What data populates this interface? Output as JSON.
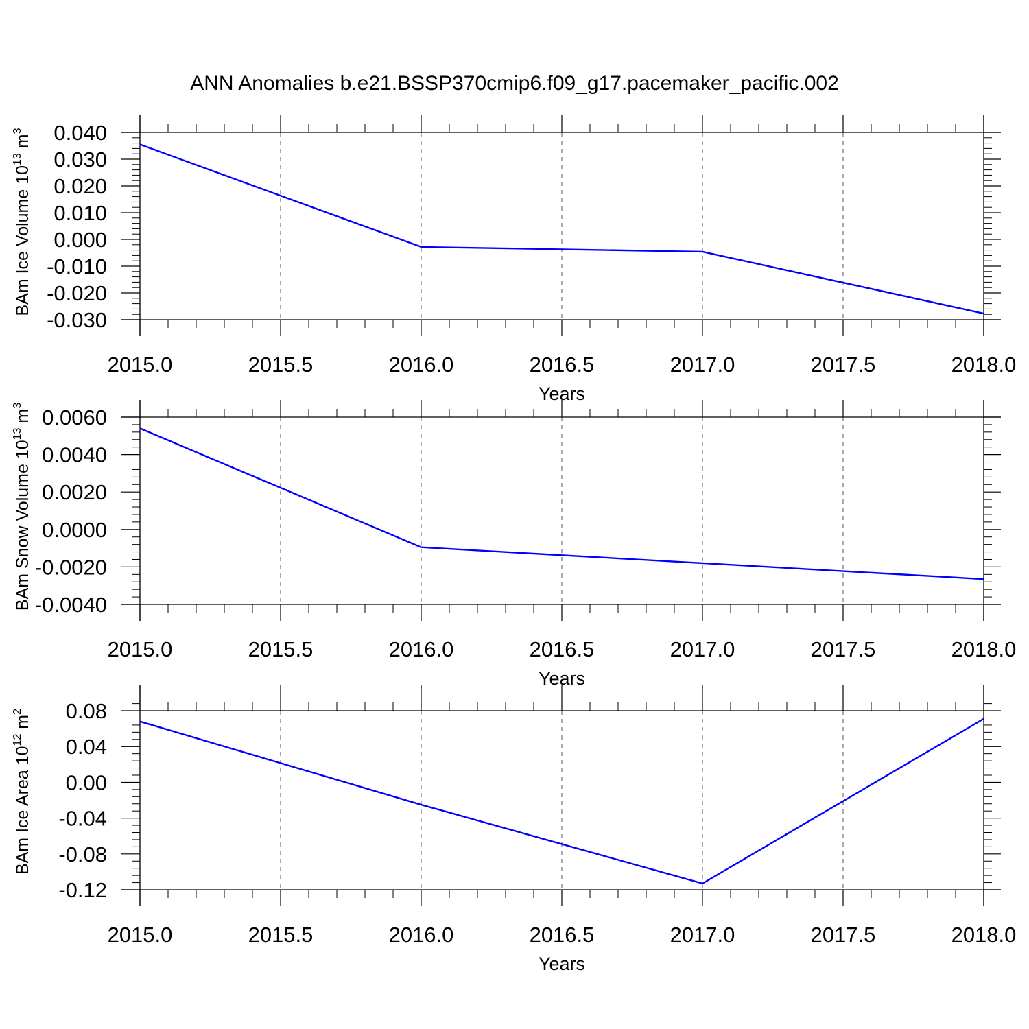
{
  "title": "ANN Anomalies b.e21.BSSP370cmip6.f09_g17.pacemaker_pacific.002",
  "colors": {
    "line": "#0000ff",
    "axis": "#000000",
    "grid": "#555555"
  },
  "chart_data": [
    {
      "type": "line",
      "ylabel": {
        "text": "BAm Ice Volume 10",
        "sup": "13",
        "unit": " m",
        "unit_sup": "3"
      },
      "xlabel": "Years",
      "xlim": [
        2015.0,
        2018.0
      ],
      "ylim": [
        -0.03,
        0.04
      ],
      "xticks": [
        "2015.0",
        "2015.5",
        "2016.0",
        "2016.5",
        "2017.0",
        "2017.5",
        "2018.0"
      ],
      "xtick_values": [
        2015.0,
        2015.5,
        2016.0,
        2016.5,
        2017.0,
        2017.5,
        2018.0
      ],
      "yticks": [
        "0.040",
        "0.030",
        "0.020",
        "0.010",
        "0.000",
        "-0.010",
        "-0.020",
        "-0.030"
      ],
      "ytick_values": [
        0.04,
        0.03,
        0.02,
        0.01,
        0.0,
        -0.01,
        -0.02,
        -0.03
      ],
      "x": [
        2015,
        2016,
        2017,
        2018
      ],
      "y": [
        0.0355,
        -0.0028,
        -0.0046,
        -0.0277
      ],
      "grid": "vertical dashed"
    },
    {
      "type": "line",
      "ylabel": {
        "text": "BAm Snow Volume 10",
        "sup": "13",
        "unit": " m",
        "unit_sup": "3"
      },
      "xlabel": "Years",
      "xlim": [
        2015.0,
        2018.0
      ],
      "ylim": [
        -0.004,
        0.006
      ],
      "xticks": [
        "2015.0",
        "2015.5",
        "2016.0",
        "2016.5",
        "2017.0",
        "2017.5",
        "2018.0"
      ],
      "xtick_values": [
        2015.0,
        2015.5,
        2016.0,
        2016.5,
        2017.0,
        2017.5,
        2018.0
      ],
      "yticks": [
        "0.0060",
        "0.0040",
        "0.0020",
        "0.0000",
        "-0.0020",
        "-0.0040"
      ],
      "ytick_values": [
        0.006,
        0.004,
        0.002,
        0.0,
        -0.002,
        -0.004
      ],
      "x": [
        2015,
        2016,
        2017,
        2018
      ],
      "y": [
        0.0054,
        -0.00095,
        -0.0018,
        -0.00265
      ],
      "grid": "vertical dashed"
    },
    {
      "type": "line",
      "ylabel": {
        "text": "BAm Ice Area 10",
        "sup": "12",
        "unit": " m",
        "unit_sup": "2"
      },
      "xlabel": "Years",
      "xlim": [
        2015.0,
        2018.0
      ],
      "ylim": [
        -0.12,
        0.09
      ],
      "xticks": [
        "2015.0",
        "2015.5",
        "2016.0",
        "2016.5",
        "2017.0",
        "2017.5",
        "2018.0"
      ],
      "xtick_values": [
        2015.0,
        2015.5,
        2016.0,
        2016.5,
        2017.0,
        2017.5,
        2018.0
      ],
      "yticks": [
        "0.08",
        "0.04",
        "0.00",
        "-0.04",
        "-0.08",
        "-0.12"
      ],
      "ytick_values": [
        0.08,
        0.04,
        0.0,
        -0.04,
        -0.08,
        -0.12
      ],
      "x": [
        2015,
        2016,
        2017,
        2018
      ],
      "y": [
        0.068,
        -0.025,
        -0.113,
        0.071
      ],
      "grid": "vertical dashed"
    }
  ]
}
